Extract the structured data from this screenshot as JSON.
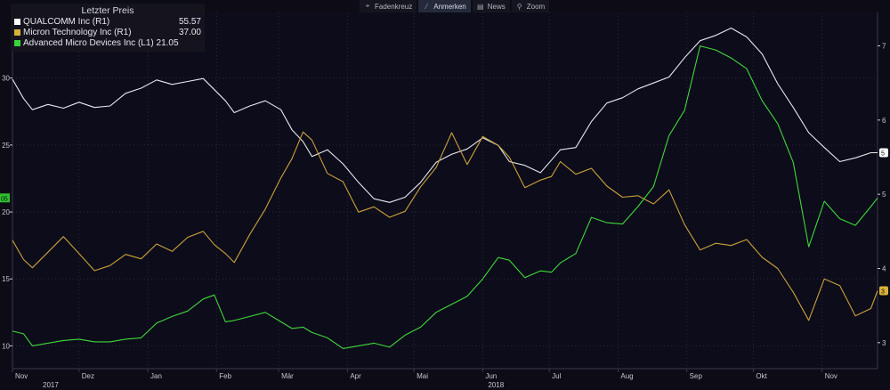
{
  "toolbar": {
    "items": [
      {
        "label": "Fadenkreuz",
        "icon": "crosshair-icon",
        "glyph": "⌖"
      },
      {
        "label": "Anmerken",
        "icon": "pen-icon",
        "glyph": "⁄"
      },
      {
        "label": "News",
        "icon": "news-icon",
        "glyph": "▤"
      },
      {
        "label": "Zoom",
        "icon": "magnifier-icon",
        "glyph": "⚲"
      }
    ],
    "active_index": 1
  },
  "legend": {
    "title": "Letzter Preis",
    "rows": [
      {
        "name": "QUALCOMM Inc  (R1)",
        "value": "55.57",
        "color": "#ffffff"
      },
      {
        "name": "Micron Technology Inc  (R1)",
        "value": "37.00",
        "color": "#d9b23a"
      },
      {
        "name": "Advanced Micro Devices Inc  (L1) 21.05",
        "value": "",
        "color": "#37d43a"
      }
    ]
  },
  "chart_data": {
    "type": "line",
    "colors": {
      "qcom": "#e8e8f0",
      "mu": "#c9a23a",
      "amd": "#3fd83b",
      "grid": "#2a2a3a",
      "axis": "#3a3a4c",
      "label": "#c8c8d0"
    },
    "x_start": "2017-11-01",
    "x_end": "2018-11-26",
    "x_month_labels": [
      {
        "date": "2017-11-01",
        "label": "Nov",
        "year": "2017"
      },
      {
        "date": "2017-12-01",
        "label": "Dez",
        "year": ""
      },
      {
        "date": "2018-01-01",
        "label": "Jan",
        "year": ""
      },
      {
        "date": "2018-02-01",
        "label": "Feb",
        "year": ""
      },
      {
        "date": "2018-03-01",
        "label": "Mär",
        "year": ""
      },
      {
        "date": "2018-04-01",
        "label": "Apr",
        "year": ""
      },
      {
        "date": "2018-05-01",
        "label": "Mai",
        "year": ""
      },
      {
        "date": "2018-06-01",
        "label": "Jun",
        "year": "2018"
      },
      {
        "date": "2018-07-01",
        "label": "Jul",
        "year": ""
      },
      {
        "date": "2018-08-01",
        "label": "Aug",
        "year": ""
      },
      {
        "date": "2018-09-01",
        "label": "Sep",
        "year": ""
      },
      {
        "date": "2018-10-01",
        "label": "Okt",
        "year": ""
      },
      {
        "date": "2018-11-01",
        "label": "Nov",
        "year": ""
      }
    ],
    "left_axis": {
      "ylim": [
        8.3,
        34.9
      ],
      "ticks": [
        10,
        15,
        20,
        25,
        30
      ],
      "labels": [
        "10",
        "15",
        "20",
        "25",
        "30"
      ],
      "last_value_tag": "05"
    },
    "right_axis": {
      "ylim": [
        26.5,
        74.5
      ],
      "ticks": [
        30,
        40,
        50,
        60,
        70
      ],
      "labels": [
        "3",
        "4",
        "5",
        "6",
        "7"
      ],
      "last_value_tags": [
        "5",
        "3"
      ]
    },
    "series": [
      {
        "name": "QUALCOMM Inc",
        "axis": "right",
        "key": "qcom",
        "points": [
          [
            "2017-11-01",
            65.5
          ],
          [
            "2017-11-06",
            62.9
          ],
          [
            "2017-11-10",
            61.4
          ],
          [
            "2017-11-17",
            62.1
          ],
          [
            "2017-11-24",
            61.6
          ],
          [
            "2017-12-01",
            62.4
          ],
          [
            "2017-12-08",
            61.7
          ],
          [
            "2017-12-15",
            61.9
          ],
          [
            "2017-12-22",
            63.6
          ],
          [
            "2017-12-29",
            64.3
          ],
          [
            "2018-01-05",
            65.4
          ],
          [
            "2018-01-12",
            64.8
          ],
          [
            "2018-01-19",
            65.2
          ],
          [
            "2018-01-26",
            65.6
          ],
          [
            "2018-01-31",
            64.1
          ],
          [
            "2018-02-05",
            62.6
          ],
          [
            "2018-02-09",
            61.0
          ],
          [
            "2018-02-16",
            61.9
          ],
          [
            "2018-02-23",
            62.6
          ],
          [
            "2018-03-02",
            61.4
          ],
          [
            "2018-03-07",
            58.7
          ],
          [
            "2018-03-12",
            57.1
          ],
          [
            "2018-03-16",
            55.1
          ],
          [
            "2018-03-23",
            56.0
          ],
          [
            "2018-03-30",
            54.1
          ],
          [
            "2018-04-06",
            51.6
          ],
          [
            "2018-04-13",
            49.4
          ],
          [
            "2018-04-20",
            48.9
          ],
          [
            "2018-04-27",
            49.6
          ],
          [
            "2018-05-04",
            51.6
          ],
          [
            "2018-05-11",
            54.3
          ],
          [
            "2018-05-18",
            55.4
          ],
          [
            "2018-05-25",
            56.1
          ],
          [
            "2018-06-01",
            57.6
          ],
          [
            "2018-06-08",
            56.6
          ],
          [
            "2018-06-13",
            54.4
          ],
          [
            "2018-06-20",
            53.9
          ],
          [
            "2018-06-27",
            52.9
          ],
          [
            "2018-07-02",
            54.6
          ],
          [
            "2018-07-06",
            56.0
          ],
          [
            "2018-07-13",
            56.3
          ],
          [
            "2018-07-20",
            59.8
          ],
          [
            "2018-07-27",
            62.3
          ],
          [
            "2018-08-03",
            63.0
          ],
          [
            "2018-08-10",
            64.2
          ],
          [
            "2018-08-17",
            65.0
          ],
          [
            "2018-08-24",
            65.8
          ],
          [
            "2018-08-31",
            68.4
          ],
          [
            "2018-09-07",
            70.7
          ],
          [
            "2018-09-14",
            71.4
          ],
          [
            "2018-09-21",
            72.4
          ],
          [
            "2018-09-28",
            71.2
          ],
          [
            "2018-10-05",
            68.9
          ],
          [
            "2018-10-12",
            64.9
          ],
          [
            "2018-10-19",
            61.7
          ],
          [
            "2018-10-26",
            58.3
          ],
          [
            "2018-11-02",
            56.3
          ],
          [
            "2018-11-09",
            54.4
          ],
          [
            "2018-11-16",
            54.9
          ],
          [
            "2018-11-23",
            55.6
          ],
          [
            "2018-11-26",
            55.6
          ]
        ]
      },
      {
        "name": "Micron Technology Inc",
        "axis": "right",
        "key": "mu",
        "points": [
          [
            "2017-11-01",
            43.8
          ],
          [
            "2017-11-06",
            41.2
          ],
          [
            "2017-11-10",
            40.1
          ],
          [
            "2017-11-17",
            42.2
          ],
          [
            "2017-11-24",
            44.3
          ],
          [
            "2017-12-01",
            42.0
          ],
          [
            "2017-12-08",
            39.7
          ],
          [
            "2017-12-15",
            40.4
          ],
          [
            "2017-12-22",
            41.9
          ],
          [
            "2017-12-29",
            41.3
          ],
          [
            "2018-01-05",
            43.3
          ],
          [
            "2018-01-12",
            42.3
          ],
          [
            "2018-01-19",
            44.2
          ],
          [
            "2018-01-26",
            45.0
          ],
          [
            "2018-01-31",
            43.2
          ],
          [
            "2018-02-05",
            42.0
          ],
          [
            "2018-02-09",
            40.8
          ],
          [
            "2018-02-16",
            44.6
          ],
          [
            "2018-02-23",
            48.0
          ],
          [
            "2018-03-02",
            52.2
          ],
          [
            "2018-03-07",
            54.8
          ],
          [
            "2018-03-12",
            58.4
          ],
          [
            "2018-03-16",
            57.3
          ],
          [
            "2018-03-23",
            52.8
          ],
          [
            "2018-03-30",
            51.7
          ],
          [
            "2018-04-06",
            47.6
          ],
          [
            "2018-04-13",
            48.3
          ],
          [
            "2018-04-20",
            46.9
          ],
          [
            "2018-04-27",
            47.7
          ],
          [
            "2018-05-04",
            51.0
          ],
          [
            "2018-05-11",
            53.6
          ],
          [
            "2018-05-18",
            58.3
          ],
          [
            "2018-05-25",
            54.0
          ],
          [
            "2018-06-01",
            57.8
          ],
          [
            "2018-06-08",
            56.6
          ],
          [
            "2018-06-13",
            55.0
          ],
          [
            "2018-06-20",
            50.9
          ],
          [
            "2018-06-27",
            51.9
          ],
          [
            "2018-07-02",
            52.4
          ],
          [
            "2018-07-06",
            54.4
          ],
          [
            "2018-07-13",
            52.7
          ],
          [
            "2018-07-20",
            53.5
          ],
          [
            "2018-07-27",
            51.1
          ],
          [
            "2018-08-03",
            49.6
          ],
          [
            "2018-08-10",
            49.8
          ],
          [
            "2018-08-17",
            48.7
          ],
          [
            "2018-08-24",
            50.6
          ],
          [
            "2018-08-31",
            45.9
          ],
          [
            "2018-09-07",
            42.5
          ],
          [
            "2018-09-14",
            43.4
          ],
          [
            "2018-09-21",
            43.1
          ],
          [
            "2018-09-28",
            43.9
          ],
          [
            "2018-10-05",
            41.5
          ],
          [
            "2018-10-12",
            40.0
          ],
          [
            "2018-10-19",
            36.8
          ],
          [
            "2018-10-26",
            33.0
          ],
          [
            "2018-11-02",
            38.6
          ],
          [
            "2018-11-09",
            37.7
          ],
          [
            "2018-11-16",
            33.6
          ],
          [
            "2018-11-23",
            34.6
          ],
          [
            "2018-11-26",
            37.0
          ]
        ]
      },
      {
        "name": "Advanced Micro Devices Inc",
        "axis": "left",
        "key": "amd",
        "points": [
          [
            "2017-11-01",
            11.1
          ],
          [
            "2017-11-06",
            10.9
          ],
          [
            "2017-11-10",
            10.0
          ],
          [
            "2017-11-17",
            10.2
          ],
          [
            "2017-11-24",
            10.4
          ],
          [
            "2017-12-01",
            10.5
          ],
          [
            "2017-12-08",
            10.3
          ],
          [
            "2017-12-15",
            10.3
          ],
          [
            "2017-12-22",
            10.5
          ],
          [
            "2017-12-29",
            10.6
          ],
          [
            "2018-01-05",
            11.7
          ],
          [
            "2018-01-12",
            12.2
          ],
          [
            "2018-01-19",
            12.6
          ],
          [
            "2018-01-26",
            13.5
          ],
          [
            "2018-01-31",
            13.8
          ],
          [
            "2018-02-05",
            11.8
          ],
          [
            "2018-02-09",
            11.9
          ],
          [
            "2018-02-16",
            12.2
          ],
          [
            "2018-02-23",
            12.5
          ],
          [
            "2018-03-02",
            11.8
          ],
          [
            "2018-03-07",
            11.3
          ],
          [
            "2018-03-12",
            11.4
          ],
          [
            "2018-03-16",
            11.0
          ],
          [
            "2018-03-23",
            10.6
          ],
          [
            "2018-03-30",
            9.8
          ],
          [
            "2018-04-06",
            10.0
          ],
          [
            "2018-04-13",
            10.2
          ],
          [
            "2018-04-20",
            9.9
          ],
          [
            "2018-04-27",
            10.8
          ],
          [
            "2018-05-04",
            11.4
          ],
          [
            "2018-05-11",
            12.5
          ],
          [
            "2018-05-18",
            13.1
          ],
          [
            "2018-05-25",
            13.7
          ],
          [
            "2018-06-01",
            15.0
          ],
          [
            "2018-06-08",
            16.6
          ],
          [
            "2018-06-13",
            16.4
          ],
          [
            "2018-06-20",
            15.1
          ],
          [
            "2018-06-27",
            15.6
          ],
          [
            "2018-07-02",
            15.5
          ],
          [
            "2018-07-06",
            16.2
          ],
          [
            "2018-07-13",
            16.9
          ],
          [
            "2018-07-20",
            19.6
          ],
          [
            "2018-07-27",
            19.2
          ],
          [
            "2018-08-03",
            19.1
          ],
          [
            "2018-08-10",
            20.4
          ],
          [
            "2018-08-17",
            21.9
          ],
          [
            "2018-08-24",
            25.7
          ],
          [
            "2018-08-31",
            27.6
          ],
          [
            "2018-09-07",
            32.4
          ],
          [
            "2018-09-14",
            32.1
          ],
          [
            "2018-09-21",
            31.5
          ],
          [
            "2018-09-28",
            30.7
          ],
          [
            "2018-10-05",
            28.3
          ],
          [
            "2018-10-12",
            26.6
          ],
          [
            "2018-10-19",
            23.7
          ],
          [
            "2018-10-26",
            17.4
          ],
          [
            "2018-11-02",
            20.8
          ],
          [
            "2018-11-09",
            19.5
          ],
          [
            "2018-11-16",
            19.0
          ],
          [
            "2018-11-23",
            20.4
          ],
          [
            "2018-11-26",
            21.05
          ]
        ]
      }
    ]
  }
}
